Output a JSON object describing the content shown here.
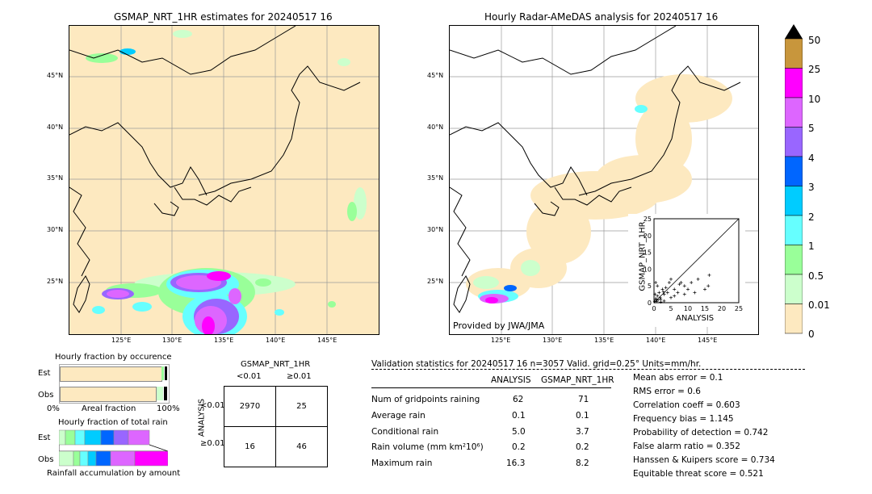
{
  "left_map": {
    "title": "GSMAP_NRT_1HR estimates for 20240517 16",
    "lat_labels": [
      "45°N",
      "40°N",
      "35°N",
      "30°N",
      "25°N"
    ],
    "lon_labels": [
      "125°E",
      "130°E",
      "135°E",
      "140°E",
      "145°E"
    ]
  },
  "right_map": {
    "title": "Hourly Radar-AMeDAS analysis for 20240517 16",
    "lat_labels": [
      "45°N",
      "40°N",
      "35°N",
      "30°N",
      "25°N"
    ],
    "lon_labels": [
      "125°E",
      "130°E",
      "135°E",
      "140°E",
      "145°E"
    ],
    "credit": "Provided by JWA/JMA"
  },
  "colorbar": {
    "labels": [
      "50",
      "25",
      "10",
      "5",
      "4",
      "3",
      "2",
      "1",
      "0.5",
      "0.01",
      "0"
    ],
    "colors": [
      "#c8963c",
      "#ff00ff",
      "#dd66ff",
      "#9966ff",
      "#0066ff",
      "#00ccff",
      "#66ffff",
      "#99ff99",
      "#ccffcc",
      "#fde9c0"
    ]
  },
  "chart_data": [
    {
      "type": "scatter",
      "xlabel": "ANALYSIS",
      "ylabel": "GSMAP_NRT_1HR",
      "xlim": [
        0,
        25
      ],
      "ylim": [
        0,
        25
      ],
      "xticks": [
        "0",
        "5",
        "10",
        "15",
        "20",
        "25"
      ],
      "yticks": [
        "0",
        "5",
        "10",
        "15",
        "20",
        "25"
      ],
      "points": [
        [
          0.2,
          0.3
        ],
        [
          0.5,
          1.2
        ],
        [
          0.8,
          0.4
        ],
        [
          1,
          2
        ],
        [
          1.5,
          3
        ],
        [
          2,
          1
        ],
        [
          2.5,
          4
        ],
        [
          3,
          2.5
        ],
        [
          1,
          5
        ],
        [
          0.5,
          6
        ],
        [
          4,
          3
        ],
        [
          5,
          1.5
        ],
        [
          6,
          4
        ],
        [
          7,
          3
        ],
        [
          8,
          6
        ],
        [
          9,
          5
        ],
        [
          10,
          4
        ],
        [
          11,
          6
        ],
        [
          12,
          3
        ],
        [
          13,
          7
        ],
        [
          15,
          4
        ],
        [
          16,
          5
        ],
        [
          3,
          0.5
        ],
        [
          2,
          0.2
        ],
        [
          1.2,
          0.8
        ],
        [
          0.3,
          2.5
        ],
        [
          4.5,
          6
        ],
        [
          6,
          2
        ],
        [
          7.5,
          5.5
        ],
        [
          9,
          2.5
        ],
        [
          5,
          7
        ],
        [
          3.5,
          4.5
        ],
        [
          1.8,
          1.5
        ],
        [
          0.6,
          0.9
        ],
        [
          2.8,
          3.2
        ],
        [
          16.3,
          8.2
        ]
      ]
    },
    {
      "type": "bar",
      "title": "Hourly fraction by occurence",
      "categories": [
        "Est",
        "Obs"
      ],
      "xlabel": "Areal fraction",
      "xticks": [
        "0%",
        "100%"
      ]
    },
    {
      "type": "bar",
      "title": "Hourly fraction of total rain",
      "categories": [
        "Est",
        "Obs"
      ],
      "xlabel": "Rainfall accumulation by amount"
    }
  ],
  "contingency": {
    "title": "GSMAP_NRT_1HR",
    "col_headers": [
      "<0.01",
      "≥0.01"
    ],
    "row_label": "ANALYSIS",
    "row_headers": [
      "<0.01",
      "≥0.01"
    ],
    "cells": [
      [
        "2970",
        "25"
      ],
      [
        "16",
        "46"
      ]
    ]
  },
  "validation": {
    "header": "Validation statistics for 20240517 16  n=3057 Valid. grid=0.25° Units=mm/hr.",
    "col_headers": [
      "ANALYSIS",
      "GSMAP_NRT_1HR"
    ],
    "rows": [
      {
        "label": "Num of gridpoints raining",
        "a": "62",
        "g": "71"
      },
      {
        "label": "Average rain",
        "a": "0.1",
        "g": "0.1"
      },
      {
        "label": "Conditional rain",
        "a": "5.0",
        "g": "3.7"
      },
      {
        "label": "Rain volume (mm km²10⁶)",
        "a": "0.2",
        "g": "0.2"
      },
      {
        "label": "Maximum rain",
        "a": "16.3",
        "g": "8.2"
      }
    ],
    "scores": [
      "Mean abs error =    0.1",
      "RMS error =    0.6",
      "Correlation coeff =  0.603",
      "Frequency bias =  1.145",
      "Probability of detection =  0.742",
      "False alarm ratio =  0.352",
      "Hanssen & Kuipers score =  0.734",
      "Equitable threat score =  0.521"
    ]
  }
}
